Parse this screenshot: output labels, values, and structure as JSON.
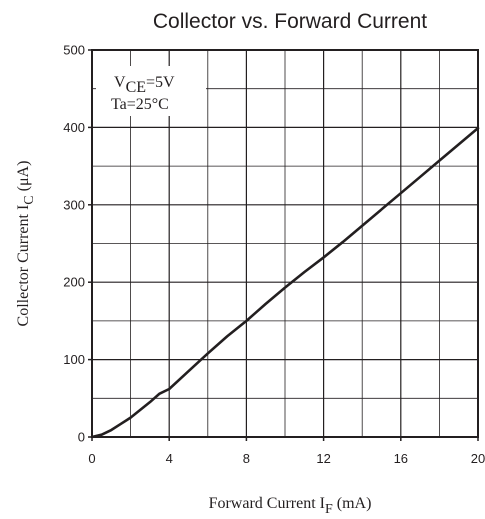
{
  "chart_data": {
    "type": "line",
    "title": "Collector vs. Forward Current",
    "xlabel": {
      "main": "Forward Current I",
      "sub": "F",
      "unit": " (mA)"
    },
    "ylabel": {
      "main": "Collector Current I",
      "sub": "C",
      "unit": " (μA)"
    },
    "xlim": [
      0,
      20
    ],
    "ylim": [
      0,
      500
    ],
    "x_ticks": [
      0,
      4,
      8,
      12,
      16,
      20
    ],
    "y_ticks": [
      0,
      100,
      200,
      300,
      400,
      500
    ],
    "x_minor_step": 2,
    "y_minor_step": 50,
    "grid": true,
    "annotation": {
      "line1_main": "V",
      "line1_sub": "CE",
      "line1_rest": "=5V",
      "line2": "Ta=25°C"
    },
    "series": [
      {
        "x": [
          0,
          0.5,
          1,
          1.5,
          2,
          2.5,
          3,
          3.5,
          4,
          5,
          6,
          7,
          8,
          9,
          10,
          11,
          12,
          13,
          14,
          15,
          16,
          17,
          18,
          19,
          20
        ],
        "y": [
          0,
          3,
          9,
          17,
          25,
          35,
          45,
          56,
          62,
          85,
          108,
          130,
          150,
          172,
          193,
          213,
          232,
          252,
          273,
          294,
          315,
          336,
          357,
          378,
          399
        ]
      }
    ]
  }
}
